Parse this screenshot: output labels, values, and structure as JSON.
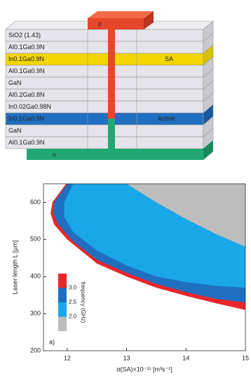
{
  "diagram": {
    "contact_p": "p",
    "contact_n": "n",
    "sa_label": "SA",
    "active_label": "Active",
    "layers": [
      "SiO2 (1.43)",
      "Al0.1Ga0.9N",
      "In0.1Ga0.9N",
      "Al0.1Ga0.9N",
      "GaN",
      "Al0.2Ga0.8N",
      "In0.02Ga0.98N",
      "In0.1Ga0.9N",
      "GaN",
      "Al0.1Ga0.9N"
    ]
  },
  "chart_data": {
    "type": "area",
    "panel_label": "a)",
    "x_label": "α(SA)×10⁻¹¹ [m³s⁻¹]",
    "y_label": "Laser length L [µm]",
    "xlim": [
      11.6,
      15
    ],
    "ylim": [
      200,
      650
    ],
    "xticks": [
      12,
      13,
      14,
      15
    ],
    "yticks": [
      200,
      300,
      400,
      500,
      600
    ],
    "series": [
      {
        "color": "#e8262b",
        "x": [
          11.98,
          11.75,
          11.72,
          11.78,
          12.0,
          12.5,
          13,
          13.5,
          14,
          14.5,
          15,
          15
        ],
        "values": [
          650,
          600,
          570,
          540,
          500,
          435,
          400,
          370,
          348,
          328,
          310,
          650
        ]
      },
      {
        "color": "#1f6fc0",
        "x": [
          12.0,
          11.78,
          11.77,
          11.85,
          12.1,
          12.5,
          13,
          13.5,
          14,
          14.5,
          15,
          15
        ],
        "values": [
          650,
          600,
          570,
          540,
          495,
          445,
          410,
          380,
          358,
          340,
          330,
          650
        ]
      },
      {
        "color": "#1aa7ea",
        "x": [
          12.1,
          11.95,
          11.95,
          12.1,
          12.5,
          13,
          13.5,
          14,
          14.5,
          15,
          15
        ],
        "values": [
          650,
          600,
          560,
          520,
          470,
          430,
          400,
          385,
          375,
          370,
          650
        ]
      },
      {
        "color": "#bdbdbd",
        "x": [
          13,
          13.5,
          14,
          14.5,
          15,
          15
        ],
        "values": [
          650,
          600,
          555,
          515,
          480,
          650
        ]
      }
    ],
    "colorbar": {
      "title": "frequency (GHz)",
      "clim": [
        1.5,
        3.5
      ],
      "ticks": [
        {
          "value": 2,
          "label": "2.0"
        },
        {
          "value": 2.5,
          "label": "2.5"
        },
        {
          "value": 3,
          "label": "3.0"
        }
      ],
      "colors": [
        "#bdbdbd",
        "#1aa7ea",
        "#1f6fc0",
        "#e8262b"
      ]
    }
  }
}
